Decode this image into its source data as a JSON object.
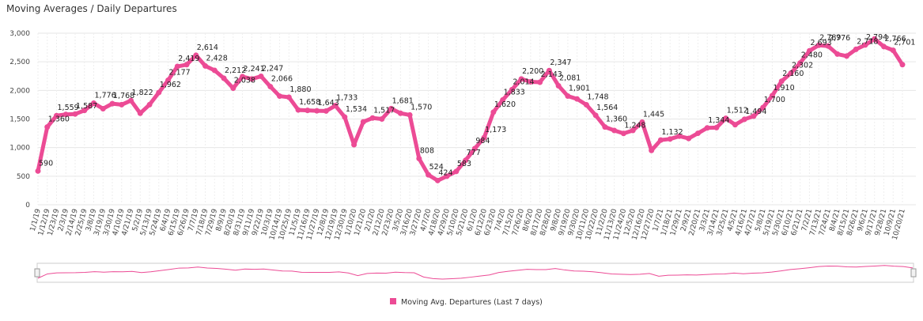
{
  "chart_data": {
    "type": "line",
    "title": "Moving Averages / Daily Departures",
    "categories": [
      "1/1/19",
      "1/12/19",
      "1/23/19",
      "2/3/19",
      "2/14/19",
      "2/25/19",
      "3/8/19",
      "3/19/19",
      "3/30/19",
      "4/10/19",
      "4/21/19",
      "5/2/19",
      "5/13/19",
      "5/24/19",
      "6/4/19",
      "6/15/19",
      "6/26/19",
      "7/7/19",
      "7/18/19",
      "7/29/19",
      "8/9/19",
      "8/20/19",
      "8/31/19",
      "9/11/19",
      "9/22/19",
      "10/3/19",
      "10/14/19",
      "10/25/19",
      "11/5/19",
      "11/16/19",
      "11/27/19",
      "12/8/19",
      "12/19/19",
      "12/30/19",
      "1/10/20",
      "1/21/20",
      "2/1/20",
      "2/12/20",
      "2/23/20",
      "3/5/20",
      "3/16/20",
      "3/27/20",
      "4/7/20",
      "4/18/20",
      "4/29/20",
      "5/10/20",
      "5/21/20",
      "6/1/20",
      "6/12/20",
      "6/23/20",
      "7/4/20",
      "7/15/20",
      "7/26/20",
      "8/6/20",
      "8/17/20",
      "8/28/20",
      "9/8/20",
      "9/19/20",
      "9/30/20",
      "10/11/20",
      "10/22/20",
      "11/2/20",
      "11/13/20",
      "11/24/20",
      "12/5/20",
      "12/16/20",
      "12/27/20",
      "1/7/21",
      "1/18/21",
      "1/29/21",
      "2/9/21",
      "2/20/21",
      "3/3/21",
      "3/14/21",
      "3/25/21",
      "4/5/21",
      "4/16/21",
      "4/27/21",
      "5/8/21",
      "5/19/21",
      "5/30/21",
      "6/10/21",
      "6/21/21",
      "7/2/21",
      "7/13/21",
      "7/24/21",
      "8/4/21",
      "8/15/21",
      "8/26/21",
      "9/6/21",
      "9/17/21",
      "9/28/21",
      "10/9/21",
      "10/20/21"
    ],
    "series": [
      {
        "name": "Moving Avg. Departures (Last 7 days)",
        "color": "#ec4b95",
        "values": [
          590,
          1360,
          1559,
          1580,
          1587,
          1650,
          1776,
          1680,
          1768,
          1750,
          1822,
          1600,
          1750,
          1962,
          2177,
          2419,
          2450,
          2614,
          2428,
          2350,
          2212,
          2038,
          2241,
          2200,
          2247,
          2066,
          1900,
          1880,
          1658,
          1650,
          1643,
          1640,
          1733,
          1534,
          1050,
          1450,
          1517,
          1500,
          1681,
          1600,
          1570,
          808,
          524,
          424,
          500,
          583,
          777,
          984,
          1173,
          1620,
          1833,
          2014,
          2200,
          2150,
          2143,
          2347,
          2081,
          1901,
          1850,
          1748,
          1564,
          1360,
          1300,
          1248,
          1300,
          1445,
          950,
          1132,
          1150,
          1200,
          1160,
          1250,
          1344,
          1350,
          1512,
          1400,
          1494,
          1550,
          1700,
          1910,
          2160,
          2302,
          2480,
          2693,
          2789,
          2776,
          2635,
          2600,
          2718,
          2794,
          2900,
          2766,
          2701,
          2450
        ],
        "value_labels": [
          "590",
          "1,360",
          "1,559",
          null,
          "1,587",
          null,
          "1,776",
          null,
          "1,768",
          null,
          "1,822",
          null,
          null,
          "1,962",
          "2,177",
          "2,419",
          null,
          "2,614",
          "2,428",
          null,
          "2,212",
          "2,038",
          "2,241",
          null,
          "2,247",
          "2,066",
          null,
          "1,880",
          "1,658",
          null,
          "1,643",
          null,
          "1,733",
          "1,534",
          null,
          null,
          "1,517",
          null,
          "1,681",
          null,
          "1,570",
          "808",
          "524",
          "424",
          null,
          "583",
          "777",
          "984",
          "1,173",
          "1,620",
          "1,833",
          "2,014",
          "2,200",
          null,
          "2,143",
          "2,347",
          "2,081",
          "1,901",
          null,
          "1,748",
          "1,564",
          "1,360",
          null,
          "1,248",
          null,
          "1,445",
          null,
          "1,132",
          null,
          null,
          null,
          null,
          "1,344",
          null,
          "1,512",
          null,
          "1,494",
          null,
          "1,700",
          "1,910",
          "2,160",
          "2,302",
          "2,480",
          "2,693",
          "2,789",
          "2,776",
          null,
          null,
          "2,718",
          "2,794",
          null,
          "2,766",
          "2,701",
          null
        ]
      }
    ],
    "ylim": [
      0,
      3000
    ],
    "yticks": [
      0,
      500,
      {
        "value": 1000,
        "label": "1,000"
      },
      {
        "value": 1500,
        "label": "1,500"
      },
      {
        "value": 2000,
        "label": "2,000"
      },
      {
        "value": 2500,
        "label": "2,500"
      },
      {
        "value": 3000,
        "label": "3,000"
      }
    ],
    "grid": true,
    "legend": "bottom"
  }
}
